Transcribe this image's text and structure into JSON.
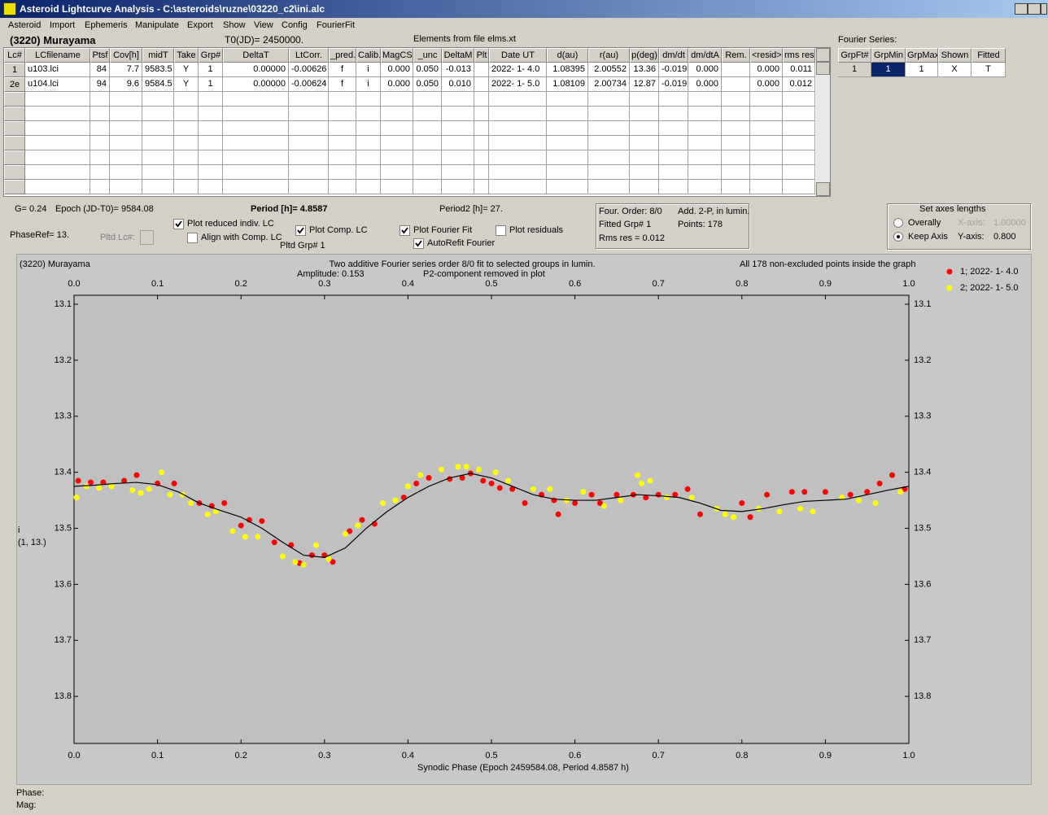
{
  "window": {
    "title": "Asteroid Lightcurve Analysis - C:\\asteroids\\ruzne\\03220_c2\\ini.alc",
    "menu": [
      "Asteroid",
      "Import",
      "Ephemeris",
      "Manipulate",
      "Export",
      "Show",
      "View",
      "Config",
      "FourierFit"
    ]
  },
  "header": {
    "object": "(3220) Murayama",
    "t0": "T0(JD)= 2450000.",
    "elements": "Elements from file elms.xt"
  },
  "table": {
    "columns": [
      "Lc#",
      "LCfilename",
      "Ptsf",
      "Cov[h]",
      "midT",
      "Take",
      "Grp#",
      "DeltaT",
      "LtCorr.",
      "_pred.",
      "Calib.",
      "MagCS",
      "_unc",
      "DeltaM",
      "Plt",
      "Date UT",
      "d(au)",
      "r(au)",
      "p(deg)",
      "dm/dt",
      "dm/dtA",
      "Rem.",
      "<resid>",
      "rms res"
    ],
    "rows": [
      [
        "1",
        "u103.lci",
        "84",
        "7.7",
        "9583.5",
        "Y",
        "1",
        "0.00000",
        "-0.00626",
        "f",
        "i",
        "0.000",
        "0.050",
        "-0.013",
        null,
        "2022- 1- 4.0",
        "1.08395",
        "2.00552",
        "13.36",
        "-0.019",
        "0.000",
        null,
        "0.000",
        "0.011"
      ],
      [
        "2e",
        "u104.lci",
        "94",
        "9.6",
        "9584.5",
        "Y",
        "1",
        "0.00000",
        "-0.00624",
        "f",
        "i",
        "0.000",
        "0.050",
        "0.010",
        null,
        "2022- 1- 5.0",
        "1.08109",
        "2.00734",
        "12.87",
        "-0.019",
        "0.000",
        null,
        "0.000",
        "0.012"
      ]
    ]
  },
  "fourier_table": {
    "title": "Fourier Series:",
    "columns": [
      "GrpFt#",
      "GrpMin",
      "GrpMax",
      "Shown",
      "Fitted"
    ],
    "rows": [
      [
        "1",
        "1",
        "1",
        "X",
        "T"
      ]
    ]
  },
  "params": {
    "g": "G= 0.24",
    "epoch": "Epoch (JD-T0)= 9584.08",
    "period": "Period [h]= 4.8587",
    "period2": "Period2 [h]= 27.",
    "phaseref": "PhaseRef= 13.",
    "pltd_lc": "Pltd Lc#:",
    "pltd_grp": "Pltd Grp#  1"
  },
  "checkboxes": [
    {
      "label": "Plot reduced indiv. LC",
      "checked": true
    },
    {
      "label": "Align with Comp. LC",
      "checked": false
    },
    {
      "label": "Plot Comp. LC",
      "checked": true
    },
    {
      "label": "Plot Fourier Fit",
      "checked": true
    },
    {
      "label": "AutoRefit Fourier",
      "checked": true
    },
    {
      "label": "Plot residuals",
      "checked": false
    }
  ],
  "info": {
    "order": "Four. Order:  8/0",
    "mode": "Add. 2-P, in lumin.",
    "fitted": "Fitted Grp# 1",
    "points": "Points: 178",
    "rms": "Rms res     = 0.012"
  },
  "axes_panel": {
    "title": "Set axes lengths",
    "options": [
      {
        "label": "Overally",
        "checked": false
      },
      {
        "label": "Keep Axis",
        "checked": true
      }
    ],
    "x_label": "X-axis:",
    "x_value": "1.00000",
    "y_label": "Y-axis:",
    "y_value": "0.800"
  },
  "chart_data": {
    "type": "scatter",
    "title": "(3220) Murayama",
    "subtitle": "Two additive Fourier series order 8/0 fit to selected groups in lumin.",
    "annotations": [
      "Amplitude: 0.153",
      "P2-component removed in plot",
      "All 178 non-excluded points inside the graph"
    ],
    "x_label": "Synodic Phase (Epoch 2459584.08, Period 4.8587 h)",
    "y_label": [
      "i",
      "(1, 13.)"
    ],
    "xlim": [
      0,
      1
    ],
    "ylim": [
      13.084,
      13.884
    ],
    "y_inverted": true,
    "xticks": [
      {
        "value": 0,
        "label": "0.0"
      },
      0.1,
      0.2,
      0.3,
      0.4,
      0.5,
      0.6,
      0.7,
      0.8,
      0.9,
      {
        "value": 1,
        "label": "1.0"
      }
    ],
    "yticks": [
      13.1,
      13.2,
      13.3,
      13.4,
      13.5,
      13.6,
      13.7,
      13.8
    ],
    "grid": false,
    "series": [
      {
        "name": "1; 2022- 1- 4.0",
        "color": "#ff0000",
        "x": [
          0.005,
          0.02,
          0.035,
          0.06,
          0.075,
          0.1,
          0.12,
          0.15,
          0.165,
          0.18,
          0.2,
          0.21,
          0.225,
          0.24,
          0.26,
          0.27,
          0.285,
          0.3,
          0.31,
          0.33,
          0.345,
          0.36,
          0.395,
          0.41,
          0.425,
          0.45,
          0.465,
          0.475,
          0.49,
          0.5,
          0.51,
          0.525,
          0.54,
          0.56,
          0.575,
          0.58,
          0.6,
          0.62,
          0.63,
          0.65,
          0.67,
          0.685,
          0.7,
          0.72,
          0.735,
          0.75,
          0.8,
          0.81,
          0.83,
          0.86,
          0.875,
          0.9,
          0.93,
          0.95,
          0.965,
          0.98,
          0.995
        ],
        "values": [
          13.415,
          13.418,
          13.418,
          13.415,
          13.405,
          13.42,
          13.42,
          13.455,
          13.46,
          13.455,
          13.495,
          13.485,
          13.487,
          13.525,
          13.53,
          13.562,
          13.548,
          13.548,
          13.56,
          13.505,
          13.485,
          13.492,
          13.445,
          13.42,
          13.41,
          13.412,
          13.41,
          13.402,
          13.415,
          13.42,
          13.428,
          13.43,
          13.455,
          13.44,
          13.45,
          13.475,
          13.455,
          13.44,
          13.455,
          13.44,
          13.44,
          13.445,
          13.44,
          13.44,
          13.43,
          13.475,
          13.455,
          13.48,
          13.44,
          13.435,
          13.435,
          13.435,
          13.44,
          13.435,
          13.42,
          13.405,
          13.43
        ]
      },
      {
        "name": "2; 2022- 1- 5.0",
        "color": "#ffff00",
        "x": [
          0.003,
          0.015,
          0.03,
          0.045,
          0.07,
          0.08,
          0.09,
          0.105,
          0.115,
          0.13,
          0.14,
          0.16,
          0.17,
          0.19,
          0.205,
          0.22,
          0.25,
          0.265,
          0.275,
          0.29,
          0.305,
          0.325,
          0.34,
          0.37,
          0.385,
          0.4,
          0.415,
          0.44,
          0.46,
          0.47,
          0.485,
          0.505,
          0.52,
          0.55,
          0.57,
          0.59,
          0.61,
          0.635,
          0.655,
          0.675,
          0.68,
          0.69,
          0.71,
          0.74,
          0.77,
          0.78,
          0.79,
          0.82,
          0.845,
          0.87,
          0.885,
          0.92,
          0.94,
          0.96,
          0.99
        ],
        "values": [
          13.445,
          13.425,
          13.428,
          13.425,
          13.432,
          13.437,
          13.43,
          13.4,
          13.44,
          13.44,
          13.455,
          13.475,
          13.47,
          13.505,
          13.515,
          13.515,
          13.55,
          13.56,
          13.565,
          13.53,
          13.555,
          13.51,
          13.495,
          13.455,
          13.45,
          13.425,
          13.405,
          13.395,
          13.39,
          13.39,
          13.395,
          13.4,
          13.415,
          13.43,
          13.43,
          13.45,
          13.435,
          13.46,
          13.45,
          13.405,
          13.42,
          13.415,
          13.445,
          13.445,
          13.465,
          13.475,
          13.48,
          13.465,
          13.47,
          13.465,
          13.47,
          13.445,
          13.45,
          13.455,
          13.435
        ]
      }
    ],
    "fit": {
      "color": "#000000",
      "x": [
        0,
        0.025,
        0.05,
        0.075,
        0.1,
        0.125,
        0.15,
        0.175,
        0.2,
        0.225,
        0.25,
        0.275,
        0.3,
        0.325,
        0.35,
        0.375,
        0.4,
        0.425,
        0.45,
        0.475,
        0.5,
        0.525,
        0.55,
        0.575,
        0.6,
        0.625,
        0.65,
        0.675,
        0.7,
        0.725,
        0.75,
        0.775,
        0.8,
        0.825,
        0.85,
        0.875,
        0.9,
        0.925,
        0.95,
        0.975,
        1
      ],
      "values": [
        13.425,
        13.423,
        13.42,
        13.418,
        13.422,
        13.435,
        13.455,
        13.468,
        13.48,
        13.5,
        13.525,
        13.548,
        13.552,
        13.535,
        13.5,
        13.47,
        13.445,
        13.425,
        13.41,
        13.402,
        13.41,
        13.425,
        13.44,
        13.448,
        13.45,
        13.45,
        13.445,
        13.44,
        13.442,
        13.445,
        13.455,
        13.468,
        13.47,
        13.465,
        13.458,
        13.452,
        13.45,
        13.448,
        13.44,
        13.432,
        13.425
      ]
    }
  },
  "status": {
    "phase": "Phase:",
    "mag": "Mag:"
  }
}
